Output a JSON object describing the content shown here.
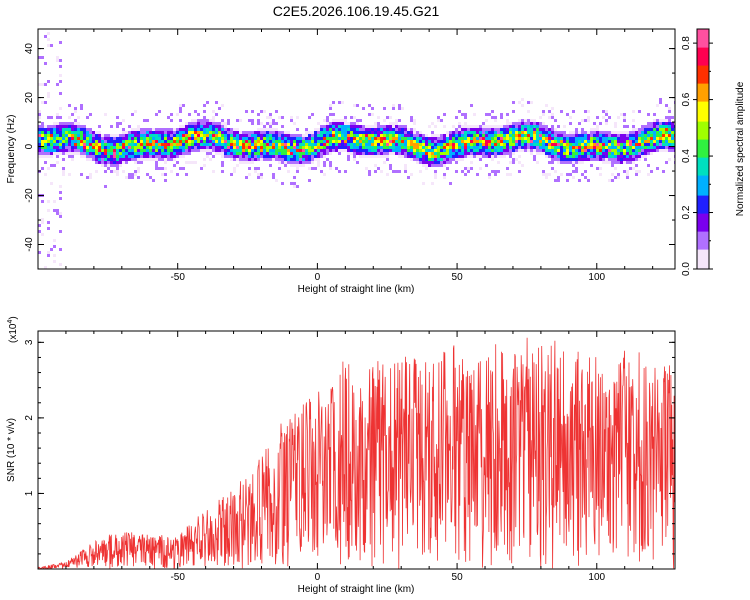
{
  "title": "C2E5.2026.106.19.45.G21",
  "chart_data": [
    {
      "type": "heatmap",
      "name": "spectrogram",
      "xlabel": "Height of straight line (km)",
      "ylabel": "Frequency (Hz)",
      "xlim": [
        -100,
        128
      ],
      "ylim": [
        -50,
        48
      ],
      "xticks": [
        -50,
        0,
        50,
        100
      ],
      "xtick_labels": [
        "-50",
        "0",
        "50",
        "100"
      ],
      "yticks": [
        -40,
        -20,
        0,
        20,
        40
      ],
      "ytick_labels": [
        "-40",
        "-20",
        "0",
        "20",
        "40"
      ],
      "band_center_hz": 2,
      "band_halfwidth_hz": 7,
      "colorbar": {
        "label": "Normalized spectral amplitude",
        "range": [
          0.0,
          0.85
        ],
        "ticks": [
          0.0,
          0.2,
          0.4,
          0.6,
          0.8
        ],
        "tick_labels": [
          "0.0",
          "0.2",
          "0.4",
          "0.6",
          "0.8"
        ],
        "colors": [
          "#f5e6fa",
          "#b070ff",
          "#7a00ee",
          "#2020ff",
          "#00b0ff",
          "#00e0c0",
          "#30f040",
          "#a0ff00",
          "#ffff00",
          "#ffa000",
          "#ff3000",
          "#ff0050",
          "#ff50a0"
        ]
      }
    },
    {
      "type": "line",
      "name": "snr",
      "xlabel": "Height of straight line (km)",
      "ylabel": "SNR (10 * v/v)",
      "y_multiplier": "(x10",
      "y_multiplier_exp": "4",
      "y_multiplier_close": ")",
      "xlim": [
        -100,
        128
      ],
      "ylim": [
        0,
        3.15
      ],
      "xticks": [
        -50,
        0,
        50,
        100
      ],
      "xtick_labels": [
        "-50",
        "0",
        "50",
        "100"
      ],
      "yticks": [
        1,
        2,
        3
      ],
      "ytick_labels": [
        "1",
        "2",
        "3"
      ],
      "color": "#ee3333",
      "envelope": [
        [
          -100,
          0.02
        ],
        [
          -90,
          0.1
        ],
        [
          -80,
          0.35
        ],
        [
          -70,
          0.5
        ],
        [
          -60,
          0.45
        ],
        [
          -50,
          0.45
        ],
        [
          -40,
          0.8
        ],
        [
          -30,
          1.05
        ],
        [
          -20,
          1.5
        ],
        [
          -10,
          2.0
        ],
        [
          0,
          2.35
        ],
        [
          10,
          2.7
        ],
        [
          20,
          2.75
        ],
        [
          30,
          2.8
        ],
        [
          40,
          2.8
        ],
        [
          50,
          2.85
        ],
        [
          60,
          2.8
        ],
        [
          70,
          2.9
        ],
        [
          80,
          3.0
        ],
        [
          90,
          2.9
        ],
        [
          100,
          2.85
        ],
        [
          110,
          2.8
        ],
        [
          120,
          2.75
        ],
        [
          128,
          2.7
        ]
      ]
    }
  ]
}
